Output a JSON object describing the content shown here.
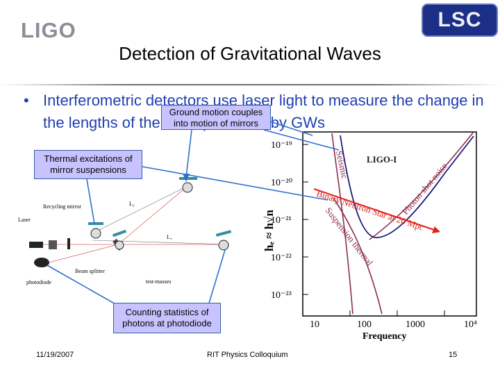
{
  "header": {
    "logo_left_text": "LIGO",
    "logo_right_text": "LSC",
    "title": "Detection of Gravitational Waves"
  },
  "body": {
    "bullet_symbol": "•",
    "bullet_text": "Interferometric detectors use laser light to measure the change in the lengths of the arms produced by GWs"
  },
  "callouts": {
    "ground_motion": "Ground motion couples into motion of mirrors",
    "thermal": "Thermal excitations of mirror suspensions",
    "photon": "Counting statistics of photons at photodiode"
  },
  "diagram": {
    "recycling_mirror_label": "Recycling mirror",
    "laser_label": "Laser",
    "photodiode_label": "photodiode",
    "beam_splitter_label": "Beam splitter",
    "test_masses_label": "test-masses",
    "arm2_label": "L₂",
    "arm1_label": "L₁"
  },
  "noise_plot": {
    "y_tick_labels": [
      "10⁻¹⁹",
      "10⁻²⁰",
      "10⁻²¹",
      "10⁻²²",
      "10⁻²³"
    ],
    "x_tick_labels": [
      "10",
      "100",
      "1000",
      "10⁴"
    ],
    "xlabel": "Frequency",
    "ylabel": "hₑ ≈ h√n",
    "legend_label": "LIGO-I",
    "curve_labels": {
      "seismic": "Seismic",
      "photon": "Photon shot noise",
      "suspension": "Suspension thermal",
      "binary": "Binary Neutron Star at 20 Mpc"
    },
    "colors": {
      "seismic": "#8b2c4f",
      "photon": "#8b2c4f",
      "sensitivity": "#1a1a7a",
      "binary_arrow": "#e0201a",
      "callout_fill": "#c8c3ff",
      "callout_border": "#2f5fa8",
      "pointer": "#2f6fcf"
    }
  },
  "footer": {
    "date": "11/19/2007",
    "center": "RIT Physics Colloquium",
    "page": "15"
  }
}
